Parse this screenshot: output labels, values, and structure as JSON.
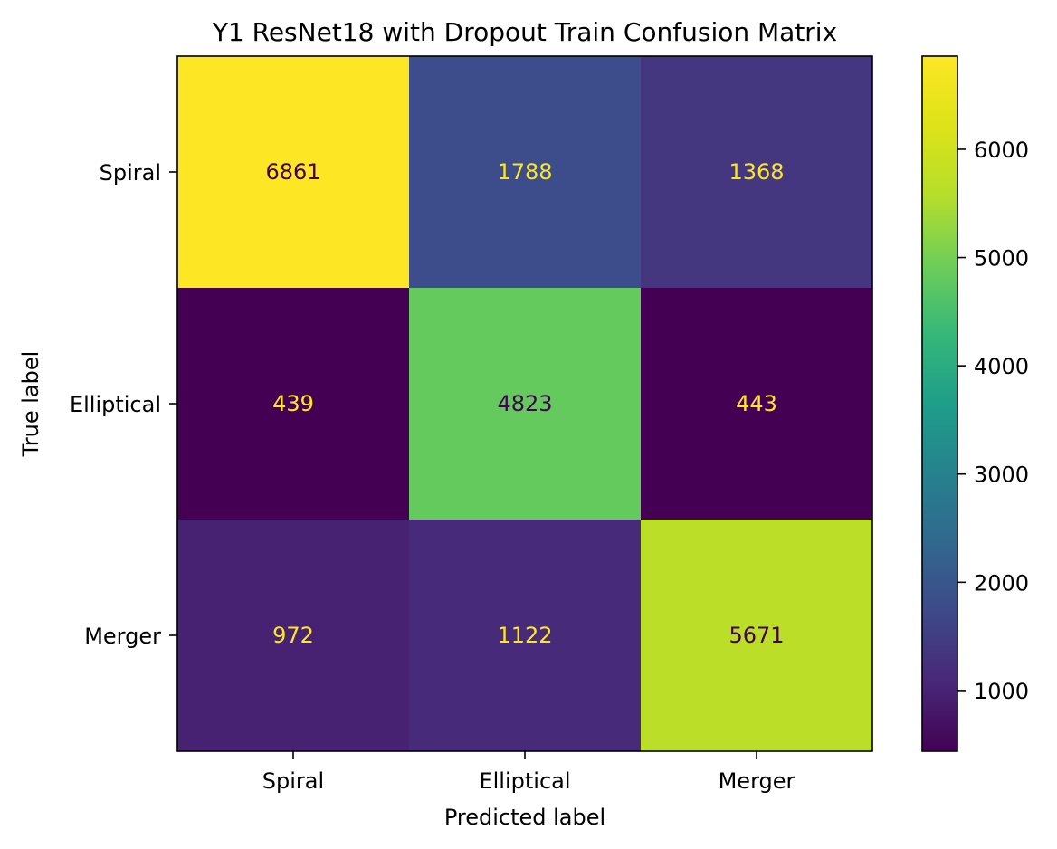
{
  "chart_data": {
    "type": "heatmap",
    "title": "Y1 ResNet18 with Dropout Train Confusion Matrix",
    "xlabel": "Predicted label",
    "ylabel": "True label",
    "x_categories": [
      "Spiral",
      "Elliptical",
      "Merger"
    ],
    "y_categories": [
      "Spiral",
      "Elliptical",
      "Merger"
    ],
    "values": [
      [
        6861,
        1788,
        1368
      ],
      [
        439,
        4823,
        443
      ],
      [
        972,
        1122,
        5671
      ]
    ],
    "colormap": "viridis",
    "colorbar": {
      "vmin": 439,
      "vmax": 6861,
      "ticks": [
        1000,
        2000,
        3000,
        4000,
        5000,
        6000
      ]
    },
    "text_colors": {
      "dark_cell": "#fde725",
      "light_cell": "#440154"
    }
  }
}
